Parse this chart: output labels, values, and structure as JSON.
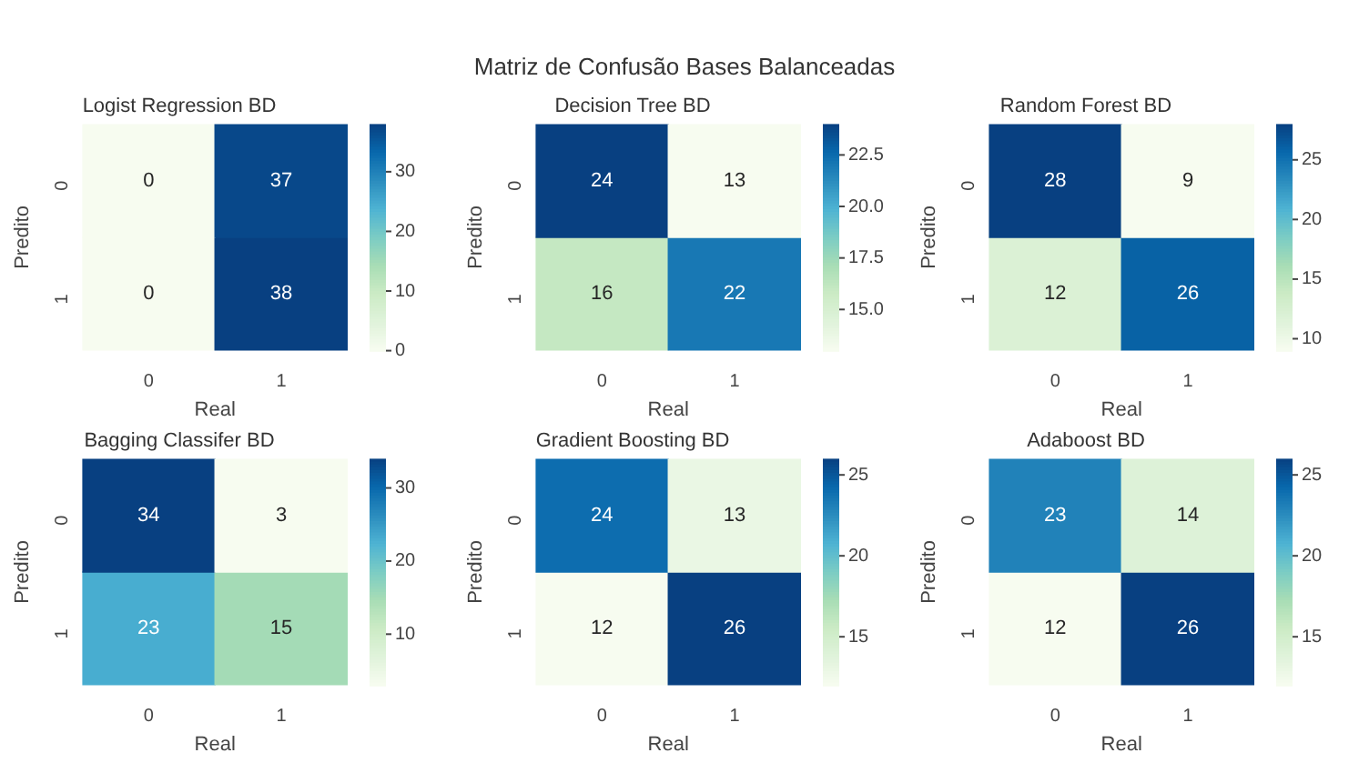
{
  "chart_data": [
    {
      "type": "heatmap",
      "title": "Logist Regression BD",
      "xlabel": "Real",
      "ylabel": "Predito",
      "annotations": [
        "Matriz de Confusão Bases Balanceadas"
      ],
      "categories": [
        "0",
        "1"
      ],
      "y_categories": [
        "0",
        "1"
      ],
      "cells": [
        [
          0,
          37
        ],
        [
          0,
          38
        ]
      ],
      "clim": [
        0,
        38
      ],
      "cticks": [
        0,
        10,
        20,
        30
      ],
      "data_labels": true
    },
    {
      "type": "heatmap",
      "title": "Decision Tree BD",
      "xlabel": "Real",
      "ylabel": "Predito",
      "categories": [
        "0",
        "1"
      ],
      "y_categories": [
        "0",
        "1"
      ],
      "cells": [
        [
          24,
          13
        ],
        [
          16,
          22
        ]
      ],
      "clim": [
        13,
        24
      ],
      "cticks": [
        {
          "value": 15,
          "label": "15.0"
        },
        {
          "value": 17.5,
          "label": "17.5"
        },
        {
          "value": 20,
          "label": "20.0"
        },
        {
          "value": 22.5,
          "label": "22.5"
        }
      ],
      "data_labels": true
    },
    {
      "type": "heatmap",
      "title": "Random Forest BD",
      "xlabel": "Real",
      "ylabel": "Predito",
      "categories": [
        "0",
        "1"
      ],
      "y_categories": [
        "0",
        "1"
      ],
      "cells": [
        [
          28,
          9
        ],
        [
          12,
          26
        ]
      ],
      "clim": [
        9,
        28
      ],
      "cticks": [
        10,
        15,
        20,
        25
      ],
      "data_labels": true
    },
    {
      "type": "heatmap",
      "title": "Bagging Classifer BD",
      "xlabel": "Real",
      "ylabel": "Predito",
      "categories": [
        "0",
        "1"
      ],
      "y_categories": [
        "0",
        "1"
      ],
      "cells": [
        [
          34,
          3
        ],
        [
          23,
          15
        ]
      ],
      "clim": [
        3,
        34
      ],
      "cticks": [
        10,
        20,
        30
      ],
      "data_labels": true
    },
    {
      "type": "heatmap",
      "title": "Gradient Boosting BD",
      "xlabel": "Real",
      "ylabel": "Predito",
      "categories": [
        "0",
        "1"
      ],
      "y_categories": [
        "0",
        "1"
      ],
      "cells": [
        [
          24,
          13
        ],
        [
          12,
          26
        ]
      ],
      "clim": [
        12,
        26
      ],
      "cticks": [
        15,
        20,
        25
      ],
      "data_labels": true
    },
    {
      "type": "heatmap",
      "title": "Adaboost BD",
      "xlabel": "Real",
      "ylabel": "Predito",
      "categories": [
        "0",
        "1"
      ],
      "y_categories": [
        "0",
        "1"
      ],
      "cells": [
        [
          23,
          14
        ],
        [
          12,
          26
        ]
      ],
      "clim": [
        12,
        26
      ],
      "cticks": [
        15,
        20,
        25
      ],
      "data_labels": true
    }
  ]
}
